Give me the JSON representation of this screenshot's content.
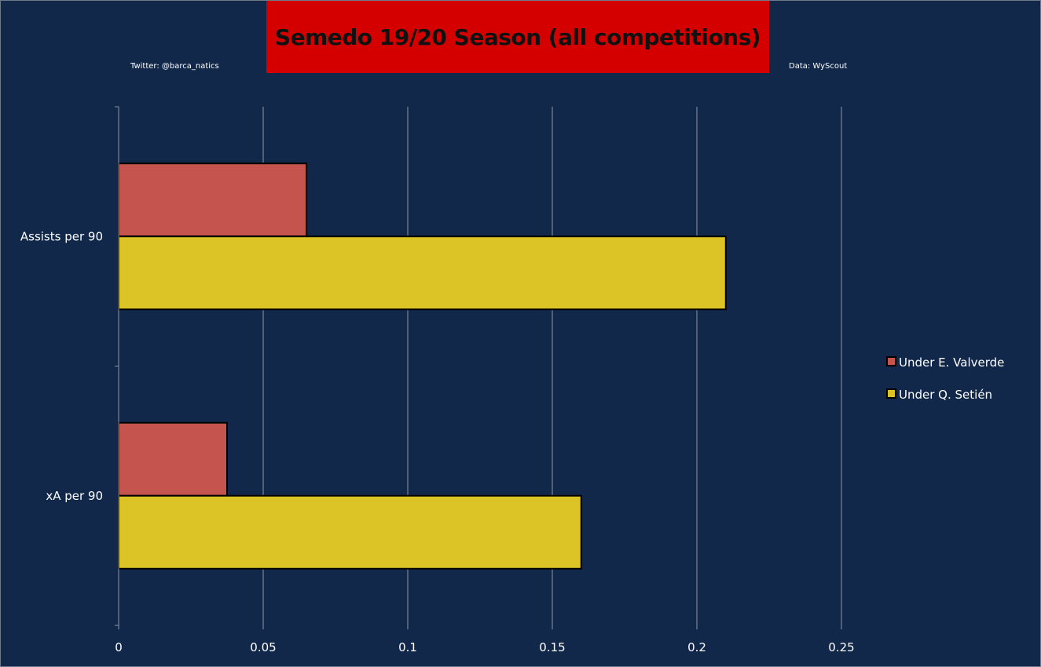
{
  "header": {
    "title": "Semedo 19/20 Season (all competitions)",
    "credit_left": "Twitter: @barca_natics",
    "credit_right": "Data: WyScout",
    "title_bg": "#d40000"
  },
  "colors": {
    "background": "#11284a",
    "series": [
      "#c5544f",
      "#dcc427"
    ]
  },
  "chart_data": {
    "type": "bar",
    "orientation": "horizontal",
    "title": "Semedo 19/20 Season (all competitions)",
    "categories": [
      "Assists per 90",
      "xA per 90"
    ],
    "series": [
      {
        "name": "Under E. Valverde",
        "values": [
          0.065,
          0.0375
        ]
      },
      {
        "name": "Under Q. Setién",
        "values": [
          0.21,
          0.16
        ]
      }
    ],
    "xlim": [
      0,
      0.25
    ],
    "xticks": [
      "0",
      "0.05",
      "0.1",
      "0.15",
      "0.2",
      "0.25"
    ],
    "xlabel": "",
    "ylabel": "",
    "grid": true,
    "legend_position": "right"
  }
}
